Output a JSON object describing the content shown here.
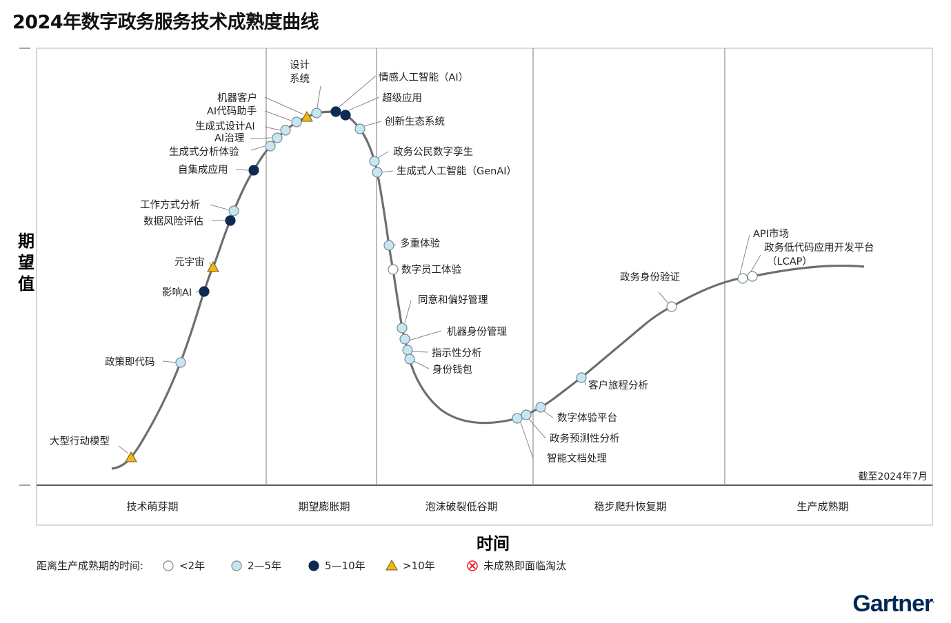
{
  "title": "2024年数字政务服务技术成熟度曲线",
  "y_axis_label": "期望值",
  "x_axis_label": "时间",
  "as_of": "截至2024年7月",
  "brand": "Gartner",
  "chart_data": {
    "type": "scatter",
    "title": "2024年数字政务服务技术成熟度曲线",
    "xlabel": "时间",
    "ylabel": "期望值",
    "note": "截至2024年7月",
    "phases": [
      "技术萌芽期",
      "期望膨胀期",
      "泡沫破裂低谷期",
      "稳步爬升恢复期",
      "生产成熟期"
    ],
    "legend_title": "距离生产成熟期的时间:",
    "legend": [
      {
        "key": "lt2",
        "label": "<2年",
        "symbol": "circle",
        "color": "#ffffff"
      },
      {
        "key": "2to5",
        "label": "2—5年",
        "symbol": "circle",
        "color": "#c6e6f2"
      },
      {
        "key": "5to10",
        "label": "5—10年",
        "symbol": "circle",
        "color": "#0d2a52"
      },
      {
        "key": "gt10",
        "label": ">10年",
        "symbol": "triangle",
        "color": "#f2b619"
      },
      {
        "key": "obsolete",
        "label": "未成熟即面临淘汰",
        "symbol": "x-circle",
        "color": "#e8262d"
      }
    ],
    "technologies": [
      {
        "name": "大型行动模型",
        "category": "gt10",
        "phase": "技术萌芽期"
      },
      {
        "name": "政策即代码",
        "category": "2to5",
        "phase": "技术萌芽期"
      },
      {
        "name": "影响AI",
        "category": "5to10",
        "phase": "技术萌芽期"
      },
      {
        "name": "元宇宙",
        "category": "gt10",
        "phase": "技术萌芽期"
      },
      {
        "name": "数据风险评估",
        "category": "5to10",
        "phase": "技术萌芽期"
      },
      {
        "name": "工作方式分析",
        "category": "2to5",
        "phase": "技术萌芽期"
      },
      {
        "name": "自集成应用",
        "category": "5to10",
        "phase": "技术萌芽期"
      },
      {
        "name": "生成式分析体验",
        "category": "2to5",
        "phase": "期望膨胀期"
      },
      {
        "name": "AI治理",
        "category": "2to5",
        "phase": "期望膨胀期"
      },
      {
        "name": "生成式设计AI",
        "category": "2to5",
        "phase": "期望膨胀期"
      },
      {
        "name": "AI代码助手",
        "category": "2to5",
        "phase": "期望膨胀期"
      },
      {
        "name": "机器客户",
        "category": "gt10",
        "phase": "期望膨胀期"
      },
      {
        "name": "设计系统",
        "category": "2to5",
        "phase": "期望膨胀期"
      },
      {
        "name": "情感人工智能（AI）",
        "category": "5to10",
        "phase": "期望膨胀期"
      },
      {
        "name": "超级应用",
        "category": "5to10",
        "phase": "期望膨胀期"
      },
      {
        "name": "创新生态系统",
        "category": "2to5",
        "phase": "期望膨胀期"
      },
      {
        "name": "政务公民数字孪生",
        "category": "2to5",
        "phase": "泡沫破裂低谷期"
      },
      {
        "name": "生成式人工智能（GenAI）",
        "category": "2to5",
        "phase": "泡沫破裂低谷期"
      },
      {
        "name": "多重体验",
        "category": "2to5",
        "phase": "泡沫破裂低谷期"
      },
      {
        "name": "数字员工体验",
        "category": "lt2",
        "phase": "泡沫破裂低谷期"
      },
      {
        "name": "同意和偏好管理",
        "category": "2to5",
        "phase": "泡沫破裂低谷期"
      },
      {
        "name": "机器身份管理",
        "category": "2to5",
        "phase": "泡沫破裂低谷期"
      },
      {
        "name": "指示性分析",
        "category": "2to5",
        "phase": "泡沫破裂低谷期"
      },
      {
        "name": "身份钱包",
        "category": "2to5",
        "phase": "泡沫破裂低谷期"
      },
      {
        "name": "智能文档处理",
        "category": "2to5",
        "phase": "泡沫破裂低谷期"
      },
      {
        "name": "政务预测性分析",
        "category": "2to5",
        "phase": "稳步爬升恢复期"
      },
      {
        "name": "数字体验平台",
        "category": "2to5",
        "phase": "稳步爬升恢复期"
      },
      {
        "name": "客户旅程分析",
        "category": "2to5",
        "phase": "稳步爬升恢复期"
      },
      {
        "name": "政务身份验证",
        "category": "lt2",
        "phase": "稳步爬升恢复期"
      },
      {
        "name": "API市场",
        "category": "lt2",
        "phase": "生产成熟期"
      },
      {
        "name": "政务低代码应用开发平台（LCAP）",
        "category": "lt2",
        "phase": "生产成熟期"
      }
    ]
  }
}
